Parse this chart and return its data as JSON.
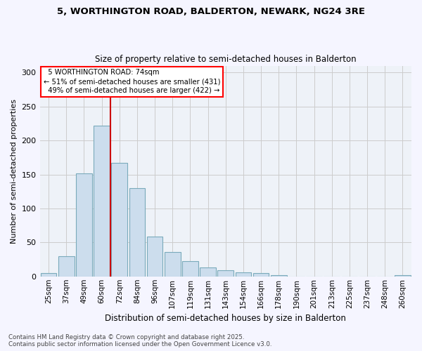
{
  "title1": "5, WORTHINGTON ROAD, BALDERTON, NEWARK, NG24 3RE",
  "title2": "Size of property relative to semi-detached houses in Balderton",
  "xlabel": "Distribution of semi-detached houses by size in Balderton",
  "ylabel": "Number of semi-detached properties",
  "categories": [
    "25sqm",
    "37sqm",
    "49sqm",
    "60sqm",
    "72sqm",
    "84sqm",
    "96sqm",
    "107sqm",
    "119sqm",
    "131sqm",
    "143sqm",
    "154sqm",
    "166sqm",
    "178sqm",
    "190sqm",
    "201sqm",
    "213sqm",
    "225sqm",
    "237sqm",
    "248sqm",
    "260sqm"
  ],
  "values": [
    5,
    30,
    152,
    222,
    167,
    130,
    59,
    36,
    22,
    13,
    9,
    6,
    5,
    2,
    0,
    0,
    0,
    0,
    0,
    0,
    2
  ],
  "bar_color": "#ccdded",
  "bar_edge_color": "#7aaabb",
  "property_line_index": 3,
  "property_line_label": "5 WORTHINGTON ROAD: 74sqm",
  "smaller_pct": "51%",
  "smaller_n": 431,
  "larger_pct": "49%",
  "larger_n": 422,
  "vline_color": "#cc0000",
  "grid_color": "#cccccc",
  "bg_color": "#eef2f8",
  "fig_bg_color": "#f5f5ff",
  "footer": "Contains HM Land Registry data © Crown copyright and database right 2025.\nContains public sector information licensed under the Open Government Licence v3.0.",
  "ylim": [
    0,
    310
  ],
  "yticks": [
    0,
    50,
    100,
    150,
    200,
    250,
    300
  ]
}
